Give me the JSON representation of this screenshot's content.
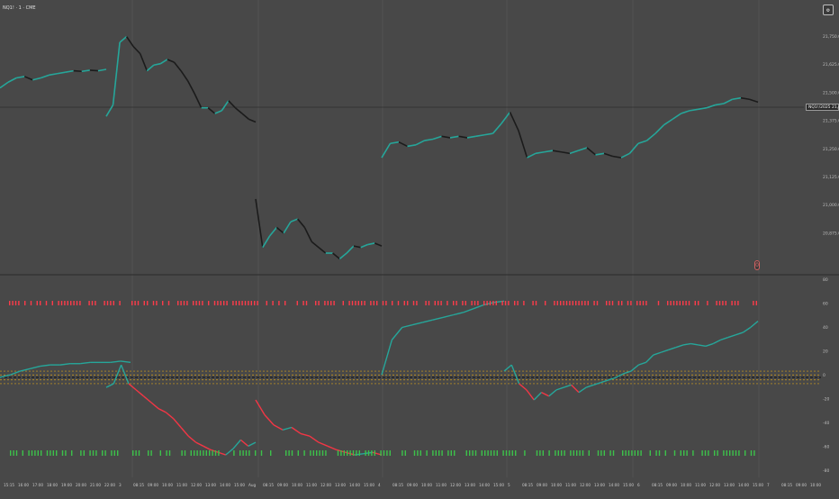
{
  "header": {
    "symbol_label": "NQ1! · 1 · CME",
    "top_button": "⚙"
  },
  "price_tag": "NQ1!/2025  21,495.25",
  "marker": "0",
  "colors": {
    "background": "#484848",
    "up": "#26a69a",
    "down": "#1b1b1b",
    "osc_up": "#26a69a",
    "osc_down": "#f23645",
    "sell_tick": "#ff3b4a",
    "buy_tick": "#3cc24a",
    "band": "#d9a21b",
    "mid_line": "#101010",
    "grid": "#5a5a5a"
  },
  "chart_data": [
    {
      "type": "line",
      "title": "",
      "y_tick_labels": [
        "21,750.00",
        "21,625.00",
        "21,500.00",
        "21,375.00",
        "21,250.00",
        "21,125.00",
        "21,000.00",
        "20,875.00"
      ],
      "last_price": 21495.25,
      "series": [
        {
          "values": [
            21540,
            21560,
            21575,
            21580,
            21568,
            21575,
            21585,
            21590,
            21595,
            21600,
            21598,
            21602,
            21600,
            21605,
            21440,
            21480,
            21700,
            21720,
            21685,
            21660,
            21600,
            21620,
            21625,
            21640,
            21630,
            21600,
            21565,
            21520,
            21470,
            21470,
            21450,
            21460,
            21495,
            21470,
            21450,
            21430,
            21420,
            21150,
            20980,
            21020,
            21050,
            21030,
            21070,
            21080,
            21050,
            21000,
            20980,
            20960,
            20960,
            20940,
            20960,
            20985,
            20980,
            20990,
            20995,
            20985,
            21295,
            21345,
            21350,
            21335,
            21340,
            21355,
            21360,
            21370,
            21365,
            21370,
            21365,
            21370,
            21375,
            21380,
            21415,
            21455,
            21390,
            21295,
            21310,
            21315,
            21320,
            21315,
            21310,
            21320,
            21330,
            21305,
            21310,
            21300,
            21295,
            21310,
            21345,
            21355,
            21380,
            21410,
            21430,
            21450,
            21460,
            21465,
            21470,
            21480,
            21485,
            21500,
            21505,
            21500,
            21490
          ]
        }
      ]
    },
    {
      "type": "line",
      "title": "",
      "y_tick_labels": [
        "80",
        "60",
        "40",
        "20",
        "0",
        "-20",
        "-40",
        "-60",
        "-80"
      ],
      "ylim": [
        -80,
        80
      ],
      "bands": [
        5,
        2,
        -2,
        -5
      ],
      "mid": 0,
      "series": [
        {
          "values": [
            0,
            2,
            5,
            7,
            9,
            10,
            10,
            11,
            11,
            12,
            12,
            12,
            13,
            12,
            -8,
            -5,
            10,
            -5,
            -10,
            -15,
            -20,
            -25,
            -28,
            -33,
            -40,
            -47,
            -52,
            -55,
            -58,
            -60,
            -62,
            -57,
            -50,
            -55,
            -52,
            -18,
            -30,
            -38,
            -42,
            -40,
            -45,
            -47,
            -52,
            -55,
            -58,
            -60,
            -62,
            -61,
            -60,
            -62,
            2,
            30,
            40,
            42,
            44,
            46,
            48,
            50,
            52,
            55,
            58,
            60,
            61,
            5,
            10,
            -5,
            -10,
            -18,
            -12,
            -15,
            -10,
            -8,
            -6,
            -12,
            -8,
            -6,
            -4,
            -2,
            0,
            3,
            5,
            10,
            12,
            18,
            20,
            22,
            24,
            26,
            27,
            26,
            25,
            27,
            30,
            32,
            34,
            36,
            40,
            45
          ]
        }
      ],
      "sell_ticks": 240,
      "buy_ticks": 260
    }
  ],
  "x_axis": {
    "tick_labels": [
      "15:15",
      "16:00",
      "17:00",
      "18:00",
      "19:00",
      "20:00",
      "21:00",
      "22:00",
      "3",
      "08:15",
      "09:00",
      "10:00",
      "11:00",
      "12:00",
      "13:00",
      "14:00",
      "15:00",
      "Aug",
      "08:15",
      "09:00",
      "10:00",
      "11:00",
      "12:00",
      "13:00",
      "14:00",
      "15:00",
      "4",
      "08:15",
      "09:00",
      "10:00",
      "11:00",
      "12:00",
      "13:00",
      "14:00",
      "15:00",
      "5",
      "08:15",
      "09:00",
      "10:00",
      "11:00",
      "12:00",
      "13:00",
      "14:00",
      "15:00",
      "6",
      "08:15",
      "09:00",
      "10:00",
      "11:00",
      "12:00",
      "13:00",
      "14:00",
      "15:00",
      "7",
      "08:15",
      "09:00",
      "10:00"
    ]
  }
}
